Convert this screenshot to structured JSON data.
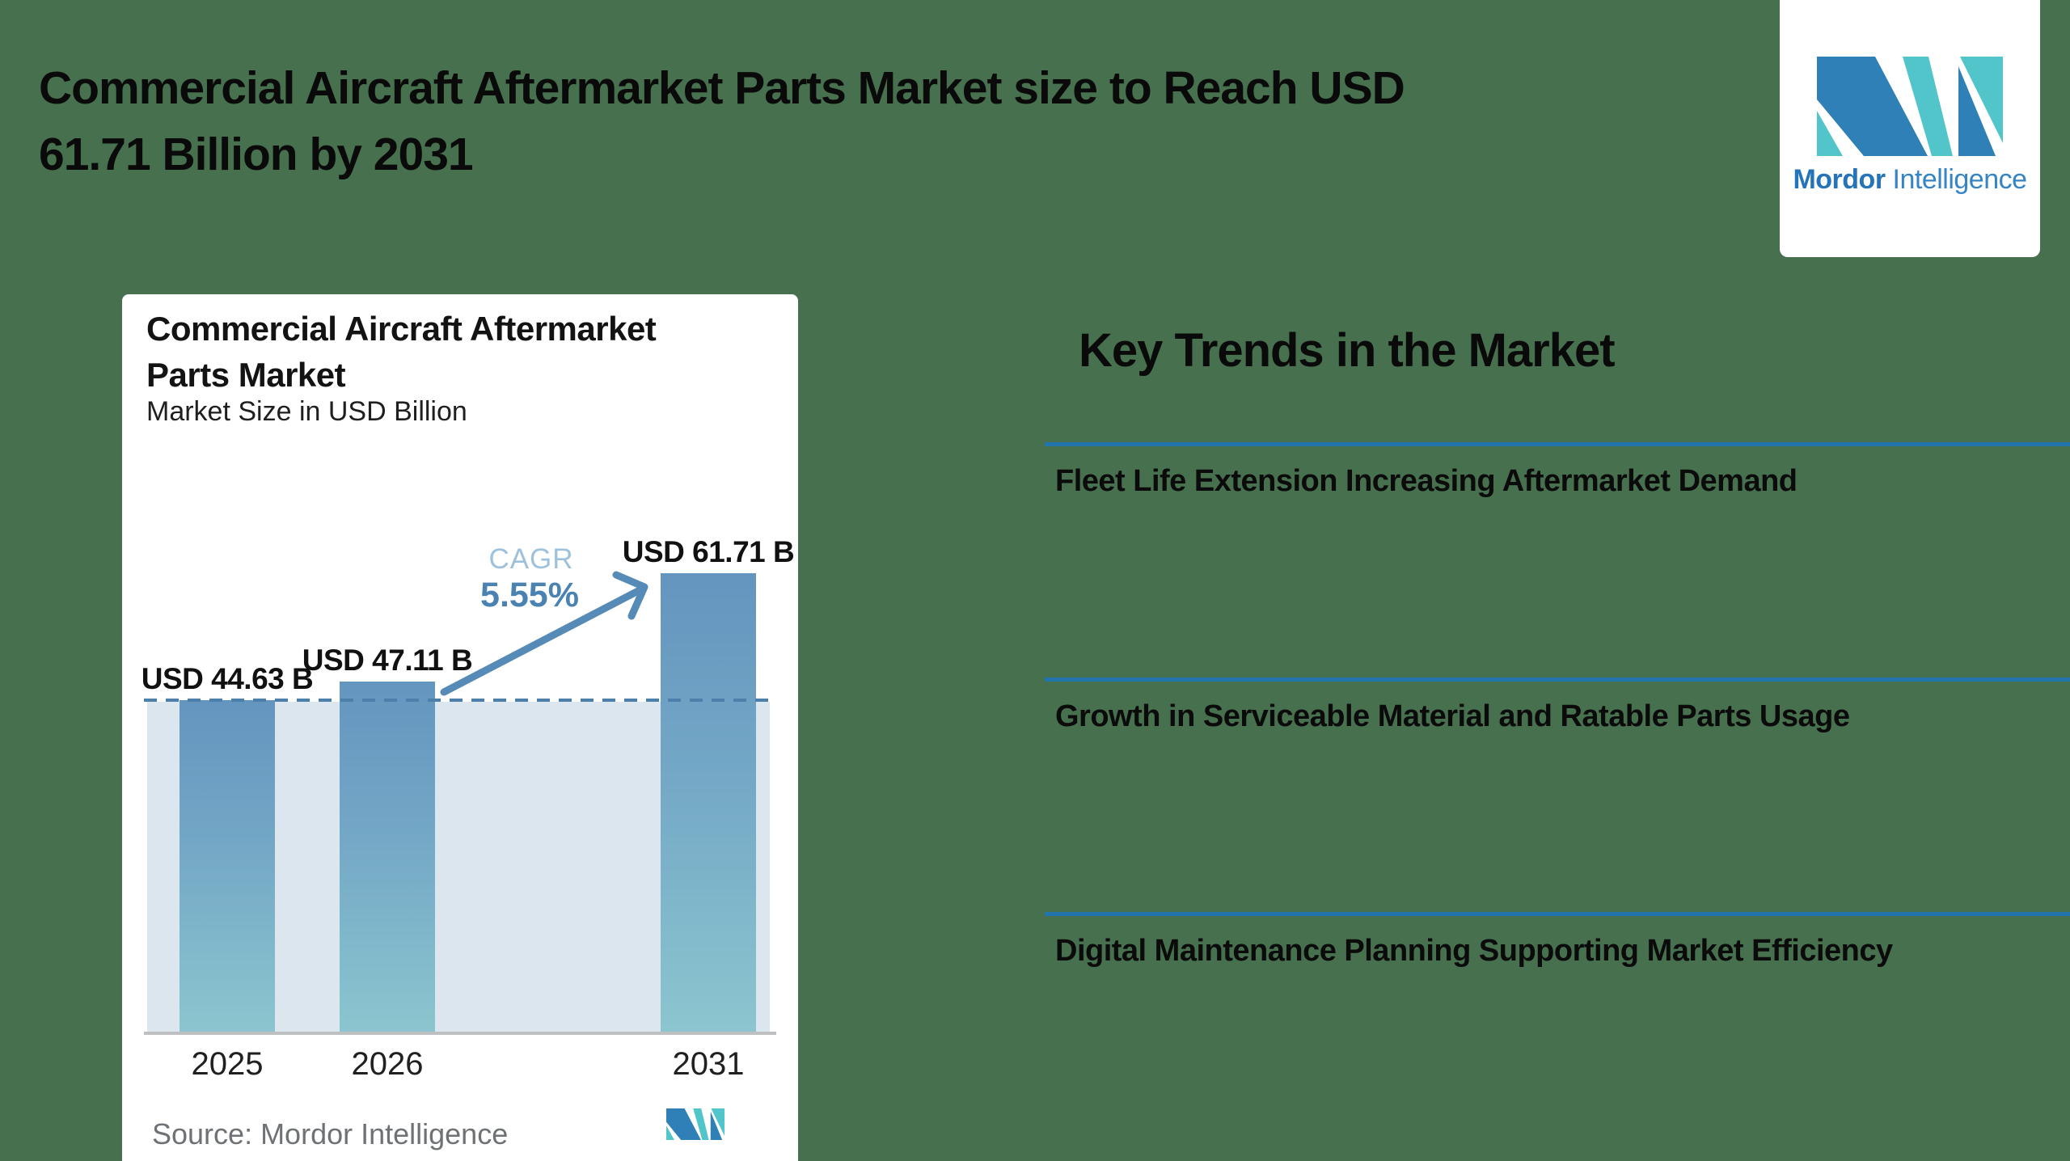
{
  "header": {
    "title_line1": "Commercial Aircraft Aftermarket Parts Market size to Reach USD",
    "title_line2": "61.71 Billion by 2031"
  },
  "brand": {
    "bold": "Mordor",
    "regular": "Intelligence"
  },
  "chart_card": {
    "title_line1": "Commercial Aircraft Aftermarket",
    "title_line2": "Parts Market",
    "subtitle": "Market Size in USD Billion",
    "cagr_label": "CAGR",
    "cagr_value": "5.55%",
    "bars": [
      {
        "year": "2025",
        "label": "USD 44.63 B",
        "value": 44.63
      },
      {
        "year": "2026",
        "label": "USD 47.11 B",
        "value": 47.11
      },
      {
        "year": "2031",
        "label": "USD 61.71 B",
        "value": 61.71
      }
    ],
    "source": "Source: Mordor Intelligence"
  },
  "trends": {
    "heading": "Key Trends in the Market",
    "items": [
      "Fleet Life Extension Increasing Aftermarket Demand",
      "Growth in Serviceable Material and Ratable Parts Usage",
      "Digital Maintenance Planning Supporting Market Efficiency"
    ]
  },
  "colors": {
    "background": "#47704E",
    "text_black": "#0A0A0A",
    "accent_rule": "#2374AD",
    "brand_blue": "#2E80B7",
    "brand_teal": "#52C5CB",
    "wordmark_bold": "#2573B9",
    "wordmark_light": "#3585C6",
    "bar_top": "#6495BF",
    "bar_bottom": "#8CC5CF",
    "band": "#DBE6EE",
    "dashed": "#4C80AB",
    "axis": "#BDBFC1",
    "cagr_light": "#9FC2DC",
    "cagr_strong": "#4A82B2",
    "arrow": "#578BB7",
    "source_gray": "#6E7275"
  },
  "chart_data": {
    "type": "bar",
    "title": "Commercial Aircraft Aftermarket Parts Market",
    "subtitle": "Market Size in USD Billion",
    "categories": [
      "2025",
      "2026",
      "2031"
    ],
    "values": [
      44.63,
      47.11,
      61.71
    ],
    "unit": "USD Billion",
    "data_labels": [
      "USD 44.63 B",
      "USD 47.11 B",
      "USD 61.71 B"
    ],
    "cagr_percent": 5.55,
    "reference_line_value": 44.63,
    "ylim": [
      0,
      70
    ],
    "grid": false,
    "legend": false,
    "source": "Mordor Intelligence"
  }
}
